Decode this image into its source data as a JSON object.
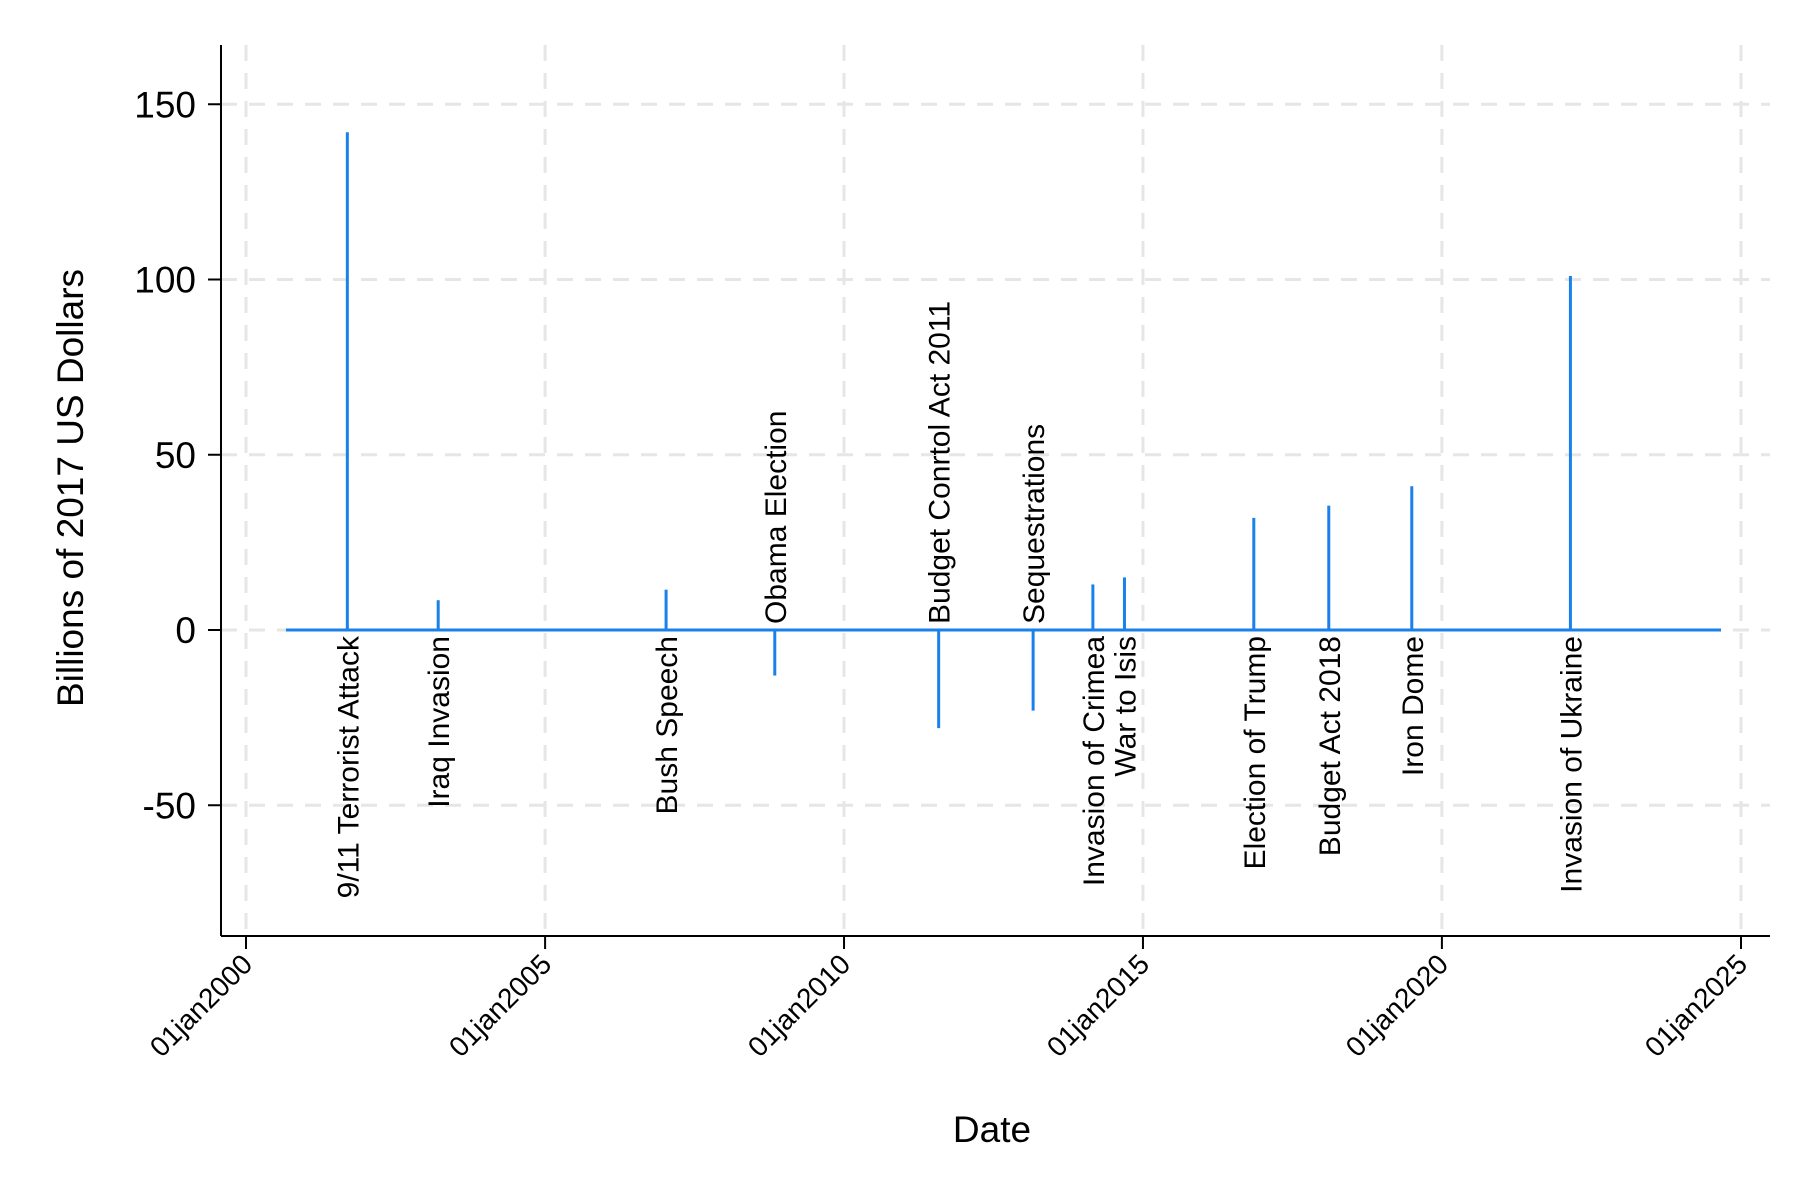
{
  "chart_data": {
    "type": "spike",
    "xlabel": "Date",
    "ylabel": "Billions of 2017 US Dollars",
    "xlim": [
      "2000-01-01",
      "2025-01-01"
    ],
    "ylim": [
      -88,
      168
    ],
    "xticks": [
      "2000-01-01",
      "2005-01-01",
      "2010-01-01",
      "2015-01-01",
      "2020-01-01",
      "2025-01-01"
    ],
    "xtick_labels": [
      "01jan2000",
      "01jan2005",
      "01jan2010",
      "01jan2015",
      "01jan2020",
      "01jan2025"
    ],
    "yticks": [
      -50,
      0,
      50,
      100,
      150
    ],
    "ytick_labels": [
      "-50",
      "0",
      "50",
      "100",
      "150"
    ],
    "baseline_range": [
      "2000-09-01",
      "2024-09-01"
    ],
    "grid": true,
    "color": "#1a80ea",
    "events": [
      {
        "date": "2001-09-11",
        "value": 142,
        "label": "9/11 Terrorist Attack"
      },
      {
        "date": "2003-03-20",
        "value": 8.5,
        "label": "Iraq Invasion"
      },
      {
        "date": "2007-01-10",
        "value": 11.5,
        "label": "Bush Speech"
      },
      {
        "date": "2008-11-04",
        "value": -13,
        "label": "Obama Election"
      },
      {
        "date": "2011-08-02",
        "value": -28,
        "label": "Budget Conrtol Act 2011"
      },
      {
        "date": "2013-03-01",
        "value": -23,
        "label": "Sequestrations"
      },
      {
        "date": "2014-03-01",
        "value": 13,
        "label": "Invasion of Crimea"
      },
      {
        "date": "2014-09-10",
        "value": 15,
        "label": "War to Isis"
      },
      {
        "date": "2016-11-08",
        "value": 32,
        "label": "Election of Trump"
      },
      {
        "date": "2018-02-09",
        "value": 35.5,
        "label": "Budget Act 2018"
      },
      {
        "date": "2019-07-01",
        "value": 41,
        "label": "Iron Dome"
      },
      {
        "date": "2022-02-24",
        "value": 101,
        "label": "Invasion of Ukraine"
      }
    ]
  }
}
